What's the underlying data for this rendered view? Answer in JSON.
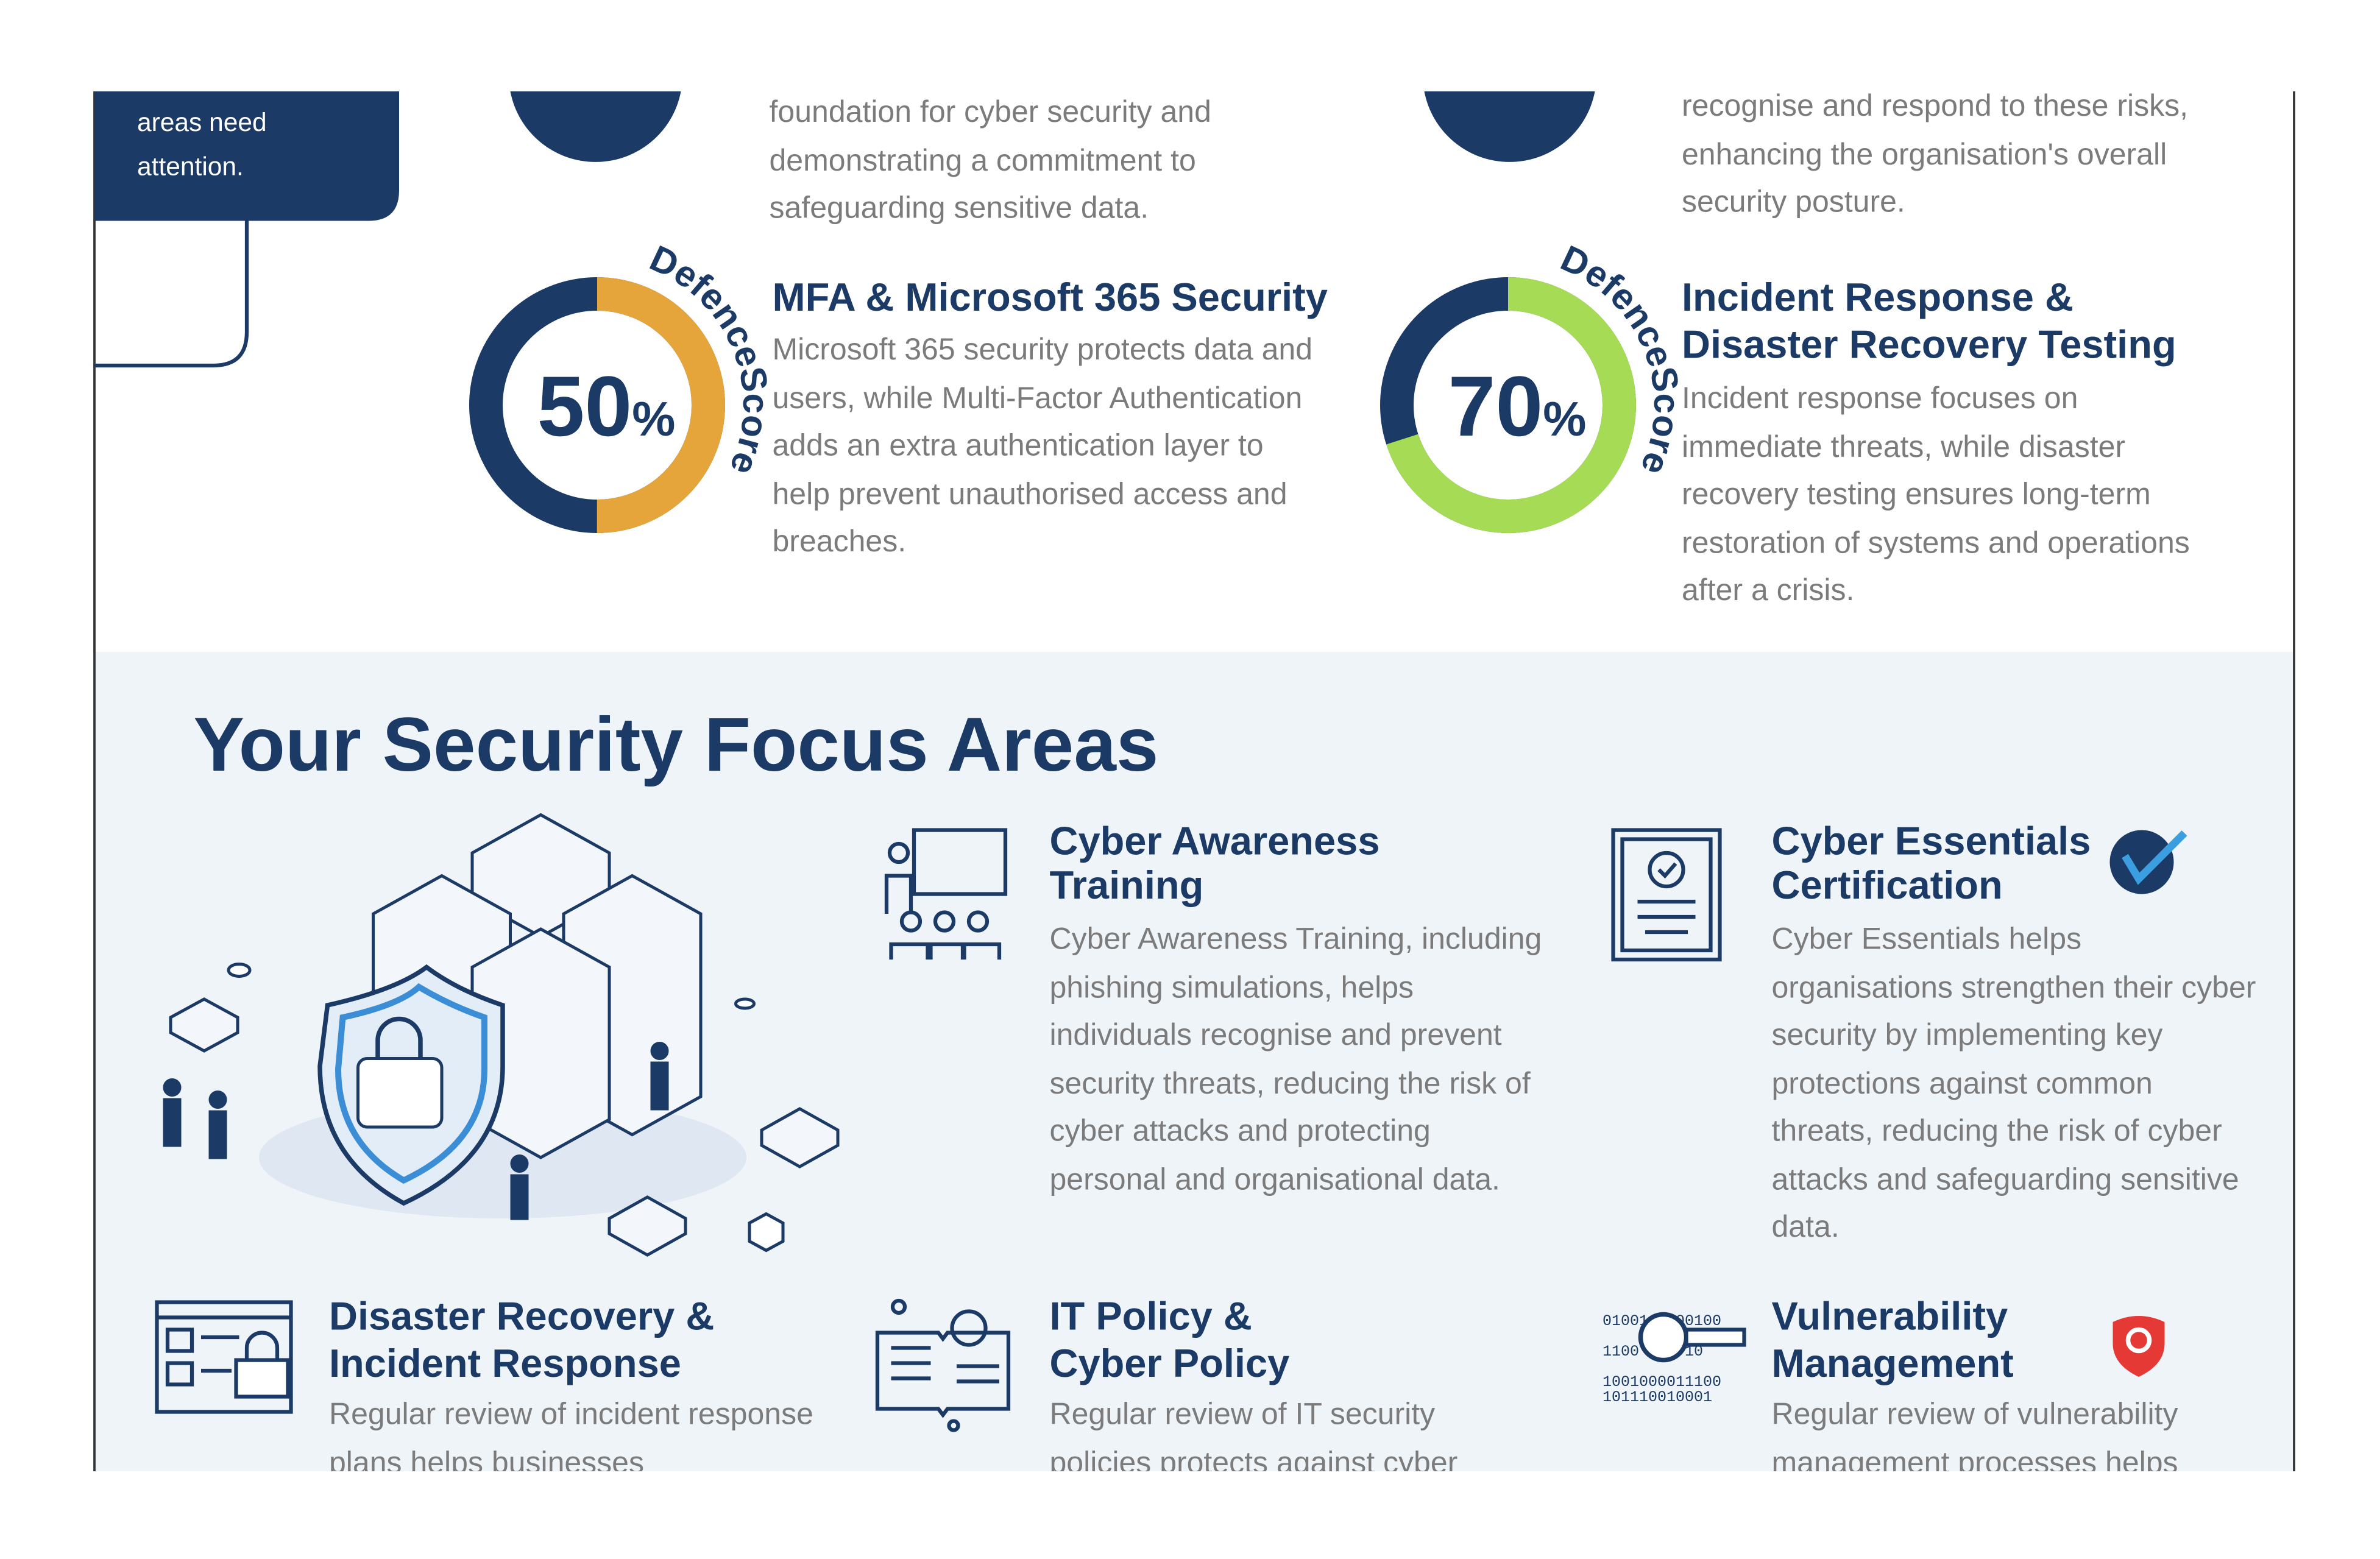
{
  "sidebar": {
    "text": "areas need attention."
  },
  "intro": [
    "foundation for cyber security and demonstrating a commitment to safeguarding sensitive data.",
    "recognise and respond to these risks, enhancing the organisation's overall security posture."
  ],
  "brand": "DefenceScore",
  "scores": [
    {
      "title": "MFA & Microsoft 365 Security",
      "description": "Microsoft 365 security protects data and users, while Multi-Factor Authentication adds an extra authentication layer to help prevent unauthorised access and breaches.",
      "score": 50,
      "unit": "%",
      "color": "#e6a53a"
    },
    {
      "title": "Incident Response & Disaster Recovery Testing",
      "description": "Incident response focuses on immediate threats, while disaster recovery testing ensures long-term restoration of systems and operations after a crisis.",
      "score": 70,
      "unit": "%",
      "color": "#a6dc55"
    }
  ],
  "focus": {
    "heading": "Your Security Focus Areas",
    "items": [
      {
        "title": "Cyber Awareness Training",
        "description": "Cyber Awareness Training, including phishing simulations, helps individuals recognise and prevent security threats, reducing the risk of cyber attacks and protecting personal and organisational data."
      },
      {
        "title": "Cyber Essentials Certification",
        "description": "Cyber Essentials helps organisations strengthen their cyber security by implementing key protections against common threats, reducing the risk of cyber attacks and safeguarding sensitive data."
      },
      {
        "title": "Disaster Recovery & Incident Response",
        "description": "Regular review of incident response plans helps businesses"
      },
      {
        "title": "IT Policy & Cyber Policy",
        "description": "Regular review of IT security policies protects against cyber"
      },
      {
        "title": "Vulnerability Management",
        "description": "Regular review of vulnerability management processes helps"
      }
    ]
  }
}
